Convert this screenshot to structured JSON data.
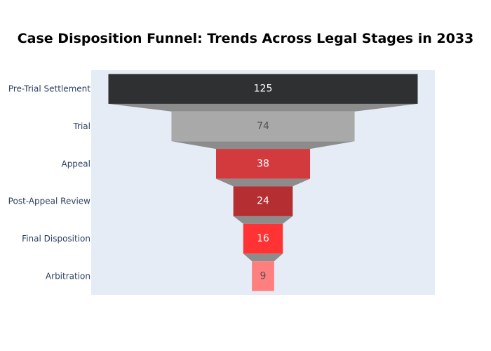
{
  "chart_data": {
    "type": "funnel",
    "title": "Case Disposition Funnel: Trends Across Legal Stages in 2033",
    "categories": [
      "Pre-Trial Settlement",
      "Trial",
      "Appeal",
      "Post-Appeal Review",
      "Final Disposition",
      "Arbitration"
    ],
    "values": [
      125,
      74,
      38,
      24,
      16,
      9
    ],
    "colors": [
      "#2f3032",
      "#a9a9a9",
      "#d33a3e",
      "#b52e31",
      "#ff3333",
      "#ff7f7f"
    ],
    "text_colors": [
      "#ffffff",
      "#555555",
      "#ffffff",
      "#ffffff",
      "#ffffff",
      "#555555"
    ],
    "connector_color": "#8c8c8c",
    "plot_background": "#e5ecf6"
  }
}
